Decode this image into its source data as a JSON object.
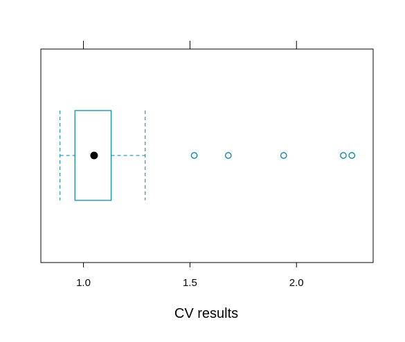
{
  "chart_data": {
    "type": "boxplot",
    "title": "",
    "xlabel": "CV results",
    "ylabel": "",
    "xlim": [
      0.8,
      2.36
    ],
    "ticks": [
      {
        "value": 1.0,
        "label": "1.0"
      },
      {
        "value": 1.5,
        "label": "1.5"
      },
      {
        "value": 2.0,
        "label": "2.0"
      }
    ],
    "orientation": "horizontal",
    "grid": false,
    "box": {
      "whisker_low": 0.89,
      "q1": 0.96,
      "median": 1.05,
      "q3": 1.13,
      "whisker_high": 1.29
    },
    "outliers": [
      1.52,
      1.68,
      1.94,
      2.22,
      2.26
    ],
    "colors": {
      "box": "#0080a8",
      "median": "#000000",
      "frame": "#000000"
    }
  }
}
